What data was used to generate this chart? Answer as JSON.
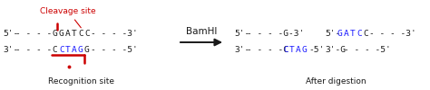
{
  "bg_color": "#ffffff",
  "fig_width": 4.74,
  "fig_height": 1.0,
  "dpi": 100,
  "cleavage_label": "Cleavage site",
  "cleavage_color": "#cc0000",
  "cleavage_fontsize": 6.5,
  "bamhi_label": "BamHI",
  "bamhi_fontsize": 7.5,
  "recog_label": "Recognition site",
  "recog_fontsize": 6.5,
  "after_label": "After digestion",
  "after_fontsize": 6.5,
  "seq_fontsize": 6.8,
  "red": "#cc0000",
  "blue": "#1a1aff",
  "black": "#1a1a1a"
}
